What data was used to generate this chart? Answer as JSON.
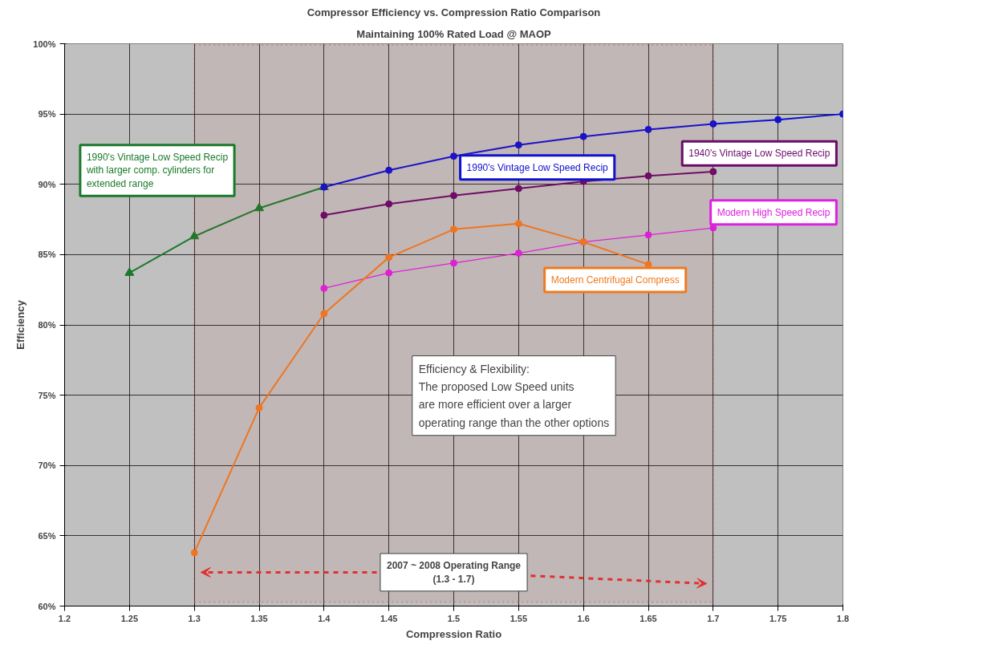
{
  "chart_data": {
    "type": "line",
    "title": "Compressor Efficiency vs. Compression Ratio Comparison",
    "subtitle": "Maintaining 100% Rated Load @ MAOP",
    "xlabel": "Compression Ratio",
    "ylabel": "Efficiency",
    "xlim": [
      1.2,
      1.8
    ],
    "xticks": [
      1.2,
      1.25,
      1.3,
      1.35,
      1.4,
      1.45,
      1.5,
      1.55,
      1.6,
      1.65,
      1.7,
      1.75,
      1.8
    ],
    "ylim": [
      60,
      100
    ],
    "yticks": [
      {
        "value": 60,
        "label": "60%"
      },
      {
        "value": 65,
        "label": "65%"
      },
      {
        "value": 70,
        "label": "70%"
      },
      {
        "value": 75,
        "label": "75%"
      },
      {
        "value": 80,
        "label": "80%"
      },
      {
        "value": 85,
        "label": "85%"
      },
      {
        "value": 90,
        "label": "90%"
      },
      {
        "value": 95,
        "label": "95%"
      },
      {
        "value": 100,
        "label": "100%"
      }
    ],
    "grid": true,
    "series": [
      {
        "name": "1990's Vintage Low Speed Recip\nwith larger comp. cylinders for\nextended range",
        "color": "#1a7a2a",
        "marker": "triangle",
        "x": [
          1.25,
          1.3,
          1.35,
          1.4
        ],
        "values": [
          83.7,
          86.3,
          88.3,
          89.8
        ]
      },
      {
        "name": "1990's Vintage Low Speed Recip",
        "color": "#1010d0",
        "marker": "circle",
        "x": [
          1.4,
          1.45,
          1.5,
          1.55,
          1.6,
          1.65,
          1.7,
          1.75,
          1.8
        ],
        "values": [
          89.8,
          91.0,
          92.0,
          92.8,
          93.4,
          93.9,
          94.3,
          94.6,
          95.0
        ]
      },
      {
        "name": "1940's Vintage Low Speed Recip",
        "color": "#6a0a6a",
        "marker": "circle",
        "x": [
          1.4,
          1.45,
          1.5,
          1.55,
          1.6,
          1.65,
          1.7
        ],
        "values": [
          87.8,
          88.6,
          89.2,
          89.7,
          90.2,
          90.6,
          90.9
        ]
      },
      {
        "name": "Modern High Speed Recip",
        "color": "#e020e0",
        "marker": "circle",
        "x": [
          1.4,
          1.45,
          1.5,
          1.55,
          1.6,
          1.65,
          1.7
        ],
        "values": [
          82.6,
          83.7,
          84.4,
          85.1,
          85.9,
          86.4,
          86.9
        ]
      },
      {
        "name": "Modern Centrifugal Compress",
        "color": "#f07a20",
        "marker": "circle",
        "x": [
          1.3,
          1.35,
          1.4,
          1.45,
          1.5,
          1.55,
          1.6,
          1.65
        ],
        "values": [
          63.8,
          74.1,
          80.8,
          84.8,
          86.8,
          87.2,
          85.9,
          84.3
        ]
      }
    ],
    "bands": [
      {
        "axis": "x",
        "from": 1.3,
        "to": 1.7,
        "label": "2007 ~ 2008 Operating Range\n(1.3 - 1.7)",
        "color": "#e03030"
      }
    ],
    "annotations": [
      "Efficiency & Flexibility:\nThe proposed Low Speed units\nare more efficient over a larger\noperating range than the other options"
    ]
  }
}
